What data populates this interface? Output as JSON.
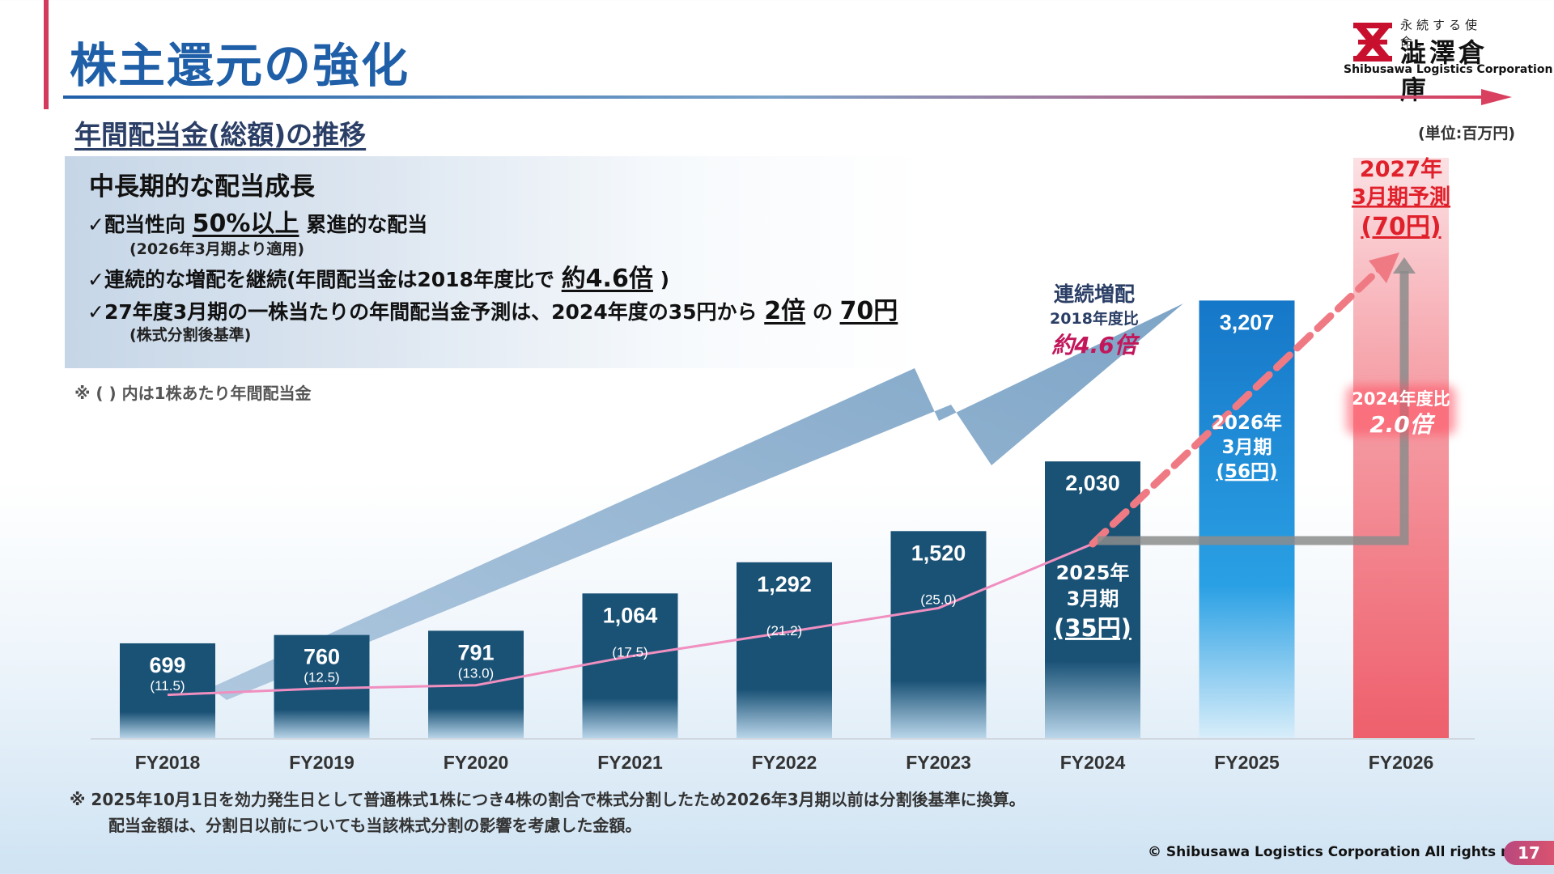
{
  "header": {
    "title": "株主還元の強化",
    "subtitle": "年間配当金(総額)の推移",
    "unit": "(単位:百万円)"
  },
  "logo": {
    "slogan": "永続する使命。",
    "name": "澁澤倉庫",
    "en": "Shibusawa Logistics Corporation"
  },
  "info": {
    "heading": "中長期的な配当成長",
    "line1_pre": "✓配当性向",
    "line1_hl": "50%以上",
    "line1_post": "累進的な配当",
    "line1_note": "(2026年3月期より適用)",
    "line2_pre": "✓連続的な増配を継続(年間配当金は2018年度比で",
    "line2_hl": "約4.6倍",
    "line2_post": ")",
    "line3_pre": "✓27年度3月期の一株当たりの年間配当金予測は、2024年度の35円から",
    "line3_hl1": "2倍",
    "line3_mid": "の",
    "line3_hl2": "70円",
    "line3_note": "(株式分割後基準)",
    "paren_note": "※ ( ) 内は1株あたり年間配当金"
  },
  "chart_data": {
    "type": "bar",
    "categories": [
      "FY2018",
      "FY2019",
      "FY2020",
      "FY2021",
      "FY2022",
      "FY2023",
      "FY2024",
      "FY2025",
      "FY2026"
    ],
    "values": [
      699,
      760,
      791,
      1064,
      1292,
      1520,
      2030,
      3207,
      null
    ],
    "value_labels": [
      "699",
      "760",
      "791",
      "1,064",
      "1,292",
      "1,520",
      "2,030",
      "3,207",
      ""
    ],
    "per_share": [
      "(11.5)",
      "(12.5)",
      "(13.0)",
      "(17.5)",
      "(21.2)",
      "(25.0)",
      "",
      "",
      ""
    ],
    "per_share_line": [
      11.5,
      12.5,
      13.0,
      17.5,
      21.2,
      25.0,
      35
    ],
    "ylim": [
      0,
      3600
    ],
    "annotations": {
      "fy2024": [
        "2025年",
        "3月期",
        "(35円)"
      ],
      "fy2025": [
        "2026年",
        "3月期",
        "(56円)"
      ],
      "fy2026": [
        "2027年",
        "3月期予測",
        "(70円)"
      ],
      "growth_title": "連続増配",
      "growth_sub": "2018年度比",
      "growth_value": "約4.6倍",
      "ratio_sub": "2024年度比",
      "ratio_value": "2.0倍"
    },
    "colors": {
      "bar_dark": "#1a5276",
      "bar_fy2025": "#1e88d6",
      "bar_forecast": "#f07c86",
      "forecast_text": "#e0202a",
      "line": "#f08fc0",
      "dashed": "#f07a84",
      "big_arrow": "#7fa6c8"
    }
  },
  "footer": {
    "note1": "※   2025年10月1日を効力発生日として普通株式1株につき4株の割合で株式分割したため2026年3月期以前は分割後基準に換算。",
    "note2": "配当金額は、分割日以前についても当該株式分割の影響を考慮した金額。",
    "copyright": "© Shibusawa Logistics Corporation All rights reserved.",
    "page": "17"
  }
}
